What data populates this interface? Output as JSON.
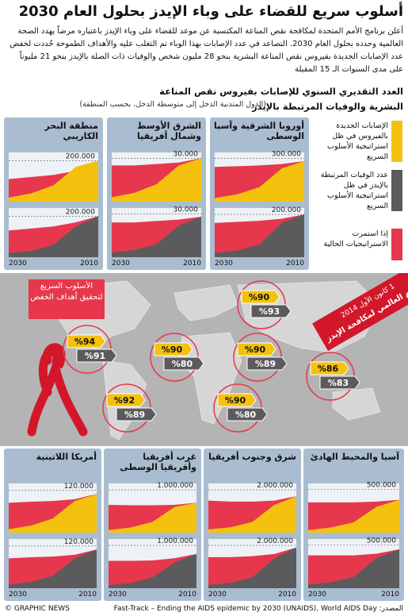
{
  "header": {
    "title": "أسلوب سريع للقضاء على وباء الإيدز بحلول العام 2030",
    "intro": "أعلن برنامج الأمم المتحدة لمكافحة نقص المناعة المكتسبة عن موعد للقضاء على وباء الإيدز باعتباره مرضاً يهدد الصحة العالمية وحدده بحلول العام 2030. التصاعد في عدد الإصابات بهذا الوباء تم التغلب عليه والأهداف الطموحة حُددت لخفض عدد الإصابات الجديدة بفيروس نقص المناعة البشرية بنحو 28 مليون شخص والوفيات ذات الصلة بالإيدز بنحو 21 مليوناً على مدى السنوات الـ 15 المقبلة",
    "subtitle": "العدد التقديري السنوي للإصابات بفيروس نقص المناعة البشرية والوفيات المرتبطة بالإيدز",
    "note": "(الدول المتدنية الدخل إلى متوسطة الدخل، بحسب المنطقة)"
  },
  "legend": {
    "items": [
      {
        "text": "الإصابات الجديدة بالفيروس في ظل استراتيجية الأسلوب السريع",
        "color": "#f4c10f"
      },
      {
        "text": "عدد الوفيات المرتبطة بالإيدز في ظل استراتيجية الأسلوب السريع",
        "color": "#5b5b5d"
      },
      {
        "text": "إذا استمرت الاستراتيجيات الحالية",
        "color": "#e7374c"
      }
    ]
  },
  "panels": [
    {
      "title": "منطقة البحر الكاريبي",
      "x": [
        2010,
        2015,
        2020,
        2025,
        2030
      ],
      "xlim": [
        2010,
        2030
      ],
      "xticks": [
        2010,
        2030
      ],
      "infections": {
        "ylim": [
          0,
          240000
        ],
        "yticks": [
          {
            "value": 200000,
            "label": "200.000"
          }
        ],
        "current": [
          200000,
          150000,
          130000,
          120000,
          110000
        ],
        "fast_track": [
          200000,
          170000,
          80000,
          40000,
          20000
        ]
      },
      "deaths": {
        "ylim": [
          0,
          240000
        ],
        "yticks": [
          {
            "value": 200000,
            "label": "200.000"
          }
        ],
        "current": [
          200000,
          170000,
          150000,
          140000,
          130000
        ],
        "fast_track": [
          200000,
          150000,
          60000,
          30000,
          20000
        ]
      }
    },
    {
      "title": "الشرق الأوسط وشمال أفريقيا",
      "x": [
        2010,
        2015,
        2020,
        2025,
        2030
      ],
      "xlim": [
        2010,
        2030
      ],
      "xticks": [
        2010,
        2030
      ],
      "infections": {
        "ylim": [
          0,
          34000
        ],
        "yticks": [
          {
            "value": 30000,
            "label": "30.000"
          }
        ],
        "current": [
          30000,
          27000,
          26000,
          25000,
          25000
        ],
        "fast_track": [
          30000,
          25000,
          12000,
          6000,
          3000
        ]
      },
      "deaths": {
        "ylim": [
          0,
          34000
        ],
        "yticks": [
          {
            "value": 30000,
            "label": "30.000"
          }
        ],
        "current": [
          28000,
          26000,
          25000,
          24000,
          24000
        ],
        "fast_track": [
          28000,
          22000,
          9000,
          5000,
          3000
        ]
      }
    },
    {
      "title": "أوروبا الشرقية وآسيا الوسطى",
      "x": [
        2010,
        2015,
        2020,
        2025,
        2030
      ],
      "xlim": [
        2010,
        2030
      ],
      "xticks": [
        2010,
        2030
      ],
      "infections": {
        "ylim": [
          0,
          340000
        ],
        "yticks": [
          {
            "value": 300000,
            "label": "300.000"
          }
        ],
        "current": [
          280000,
          260000,
          250000,
          245000,
          240000
        ],
        "fast_track": [
          280000,
          230000,
          100000,
          50000,
          25000
        ]
      },
      "deaths": {
        "ylim": [
          0,
          230000
        ],
        "yticks": [
          {
            "value": 200000,
            "label": "200.000"
          }
        ],
        "current": [
          200000,
          180000,
          170000,
          165000,
          160000
        ],
        "fast_track": [
          200000,
          160000,
          60000,
          30000,
          20000
        ]
      }
    },
    {
      "title": "أمريكا اللاتينية",
      "x": [
        2010,
        2015,
        2020,
        2025,
        2030
      ],
      "xlim": [
        2010,
        2030
      ],
      "xticks": [
        2010,
        2030
      ],
      "infections": {
        "ylim": [
          0,
          140000
        ],
        "yticks": [
          {
            "value": 120000,
            "label": "120.000"
          }
        ],
        "current": [
          110000,
          95000,
          90000,
          88000,
          85000
        ],
        "fast_track": [
          110000,
          90000,
          40000,
          20000,
          10000
        ]
      },
      "deaths": {
        "ylim": [
          0,
          140000
        ],
        "yticks": [
          {
            "value": 120000,
            "label": "120.000"
          }
        ],
        "current": [
          110000,
          95000,
          90000,
          88000,
          85000
        ],
        "fast_track": [
          110000,
          85000,
          35000,
          18000,
          10000
        ]
      }
    },
    {
      "title": "غرب أفريقيا وأفريقيا الوسطى",
      "x": [
        2010,
        2015,
        2020,
        2025,
        2030
      ],
      "xlim": [
        2010,
        2030
      ],
      "xticks": [
        2010,
        2030
      ],
      "infections": {
        "ylim": [
          0,
          1150000
        ],
        "yticks": [
          {
            "value": 1000000,
            "label": "1.000.000"
          }
        ],
        "current": [
          700000,
          650000,
          640000,
          640000,
          650000
        ],
        "fast_track": [
          700000,
          600000,
          250000,
          120000,
          60000
        ]
      },
      "deaths": {
        "ylim": [
          0,
          1150000
        ],
        "yticks": [
          {
            "value": 1000000,
            "label": "1.000.000"
          }
        ],
        "current": [
          800000,
          700000,
          650000,
          640000,
          640000
        ],
        "fast_track": [
          800000,
          600000,
          250000,
          120000,
          70000
        ]
      }
    },
    {
      "title": "شرق وجنوب أفريقيا",
      "x": [
        2010,
        2015,
        2020,
        2025,
        2030
      ],
      "xlim": [
        2010,
        2030
      ],
      "xticks": [
        2010,
        2030
      ],
      "infections": {
        "ylim": [
          0,
          2300000
        ],
        "yticks": [
          {
            "value": 2000000,
            "label": "2.000.000"
          }
        ],
        "current": [
          1700000,
          1500000,
          1450000,
          1450000,
          1500000
        ],
        "fast_track": [
          1700000,
          1300000,
          500000,
          250000,
          150000
        ]
      },
      "deaths": {
        "ylim": [
          0,
          2300000
        ],
        "yticks": [
          {
            "value": 2000000,
            "label": "2.000.000"
          }
        ],
        "current": [
          1900000,
          1600000,
          1500000,
          1450000,
          1450000
        ],
        "fast_track": [
          1900000,
          1400000,
          500000,
          250000,
          150000
        ]
      }
    },
    {
      "title": "آسيا والمحيط الهادئ",
      "x": [
        2010,
        2015,
        2020,
        2025,
        2030
      ],
      "xlim": [
        2010,
        2030
      ],
      "xticks": [
        2010,
        2030
      ],
      "infections": {
        "ylim": [
          0,
          570000
        ],
        "yticks": [
          {
            "value": 500000,
            "label": "500.000"
          }
        ],
        "current": [
          380000,
          360000,
          350000,
          350000,
          350000
        ],
        "fast_track": [
          380000,
          300000,
          120000,
          60000,
          30000
        ]
      },
      "deaths": {
        "ylim": [
          0,
          570000
        ],
        "yticks": [
          {
            "value": 500000,
            "label": "500.000"
          }
        ],
        "current": [
          450000,
          400000,
          380000,
          380000,
          380000
        ],
        "fast_track": [
          450000,
          350000,
          130000,
          70000,
          40000
        ]
      }
    }
  ],
  "map": {
    "banner": "الأسلوب السريع لتحقيق أهداف الخفض",
    "day": "اليوم العالمي لمكافحة الإيدز",
    "date": "1 كانون الأول 2014",
    "badges": [
      {
        "infections": "%94",
        "deaths": "%91"
      },
      {
        "infections": "%92",
        "deaths": "%89"
      },
      {
        "infections": "%90",
        "deaths": "%80"
      },
      {
        "infections": "%90",
        "deaths": "%89"
      },
      {
        "infections": "%90",
        "deaths": "%80"
      },
      {
        "infections": "%86",
        "deaths": "%83"
      },
      {
        "infections": "%90",
        "deaths": "%93"
      }
    ]
  },
  "footer": {
    "credit": "© GRAPHIC NEWS",
    "source": "المصدر: Fast-Track – Ending the AIDS epidemic by 2030 (UNAIDS), World AIDS Day"
  }
}
